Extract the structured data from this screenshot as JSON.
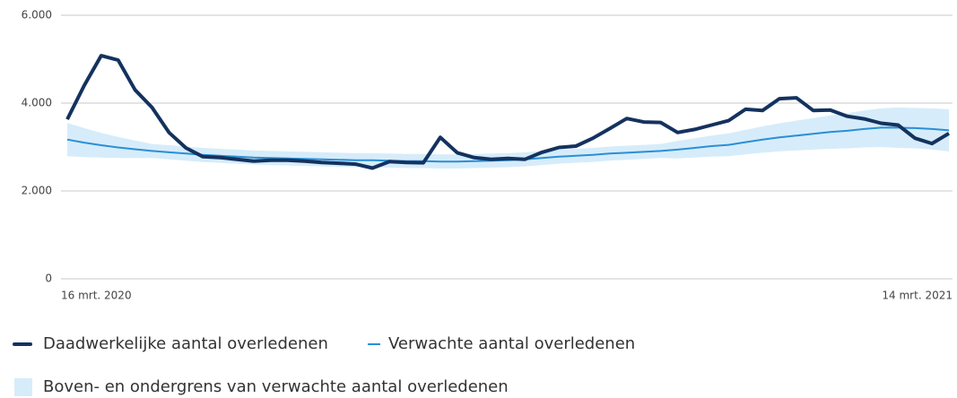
{
  "chart_data": {
    "type": "line",
    "categories": [
      "16 mrt. 2020",
      null,
      null,
      null,
      null,
      null,
      null,
      null,
      null,
      null,
      null,
      null,
      null,
      null,
      null,
      null,
      null,
      null,
      null,
      null,
      null,
      null,
      null,
      null,
      null,
      null,
      null,
      null,
      null,
      null,
      null,
      null,
      null,
      null,
      null,
      null,
      null,
      null,
      null,
      null,
      null,
      null,
      null,
      null,
      null,
      null,
      null,
      null,
      null,
      null,
      null,
      null,
      "14 mrt. 2021"
    ],
    "series": [
      {
        "name": "Daadwerkelijke aantal overledenen",
        "color": "#14325f",
        "values": [
          3630,
          4400,
          5080,
          4980,
          4300,
          3900,
          3330,
          2980,
          2780,
          2760,
          2720,
          2680,
          2700,
          2700,
          2680,
          2650,
          2630,
          2610,
          2520,
          2670,
          2650,
          2640,
          3220,
          2870,
          2760,
          2720,
          2740,
          2720,
          2880,
          2990,
          3020,
          3200,
          3420,
          3650,
          3570,
          3560,
          3330,
          3400,
          3500,
          3600,
          3860,
          3830,
          4100,
          4120,
          3830,
          3840,
          3700,
          3640,
          3540,
          3500,
          3200,
          3080,
          3310
        ]
      },
      {
        "name": "Verwachte aantal overledenen",
        "color": "#2a8fd6",
        "values": [
          3170,
          3100,
          3040,
          2990,
          2950,
          2910,
          2880,
          2850,
          2820,
          2800,
          2780,
          2760,
          2750,
          2740,
          2730,
          2720,
          2710,
          2700,
          2700,
          2690,
          2680,
          2680,
          2670,
          2670,
          2680,
          2690,
          2700,
          2720,
          2750,
          2780,
          2800,
          2820,
          2850,
          2870,
          2890,
          2910,
          2940,
          2980,
          3020,
          3050,
          3110,
          3170,
          3220,
          3260,
          3300,
          3340,
          3370,
          3410,
          3440,
          3440,
          3430,
          3410,
          3380
        ]
      }
    ],
    "band": {
      "name": "Boven- en ondergrens van verwachte aantal overledenen",
      "color": "#d6ecfa",
      "upper": [
        3550,
        3430,
        3320,
        3230,
        3150,
        3070,
        3040,
        3010,
        2980,
        2960,
        2940,
        2920,
        2910,
        2900,
        2890,
        2880,
        2870,
        2860,
        2860,
        2850,
        2840,
        2840,
        2830,
        2830,
        2840,
        2850,
        2860,
        2880,
        2910,
        2940,
        2960,
        2980,
        3010,
        3030,
        3050,
        3070,
        3140,
        3200,
        3260,
        3310,
        3390,
        3470,
        3540,
        3600,
        3660,
        3720,
        3770,
        3830,
        3880,
        3900,
        3890,
        3880,
        3860
      ],
      "lower": [
        2790,
        2770,
        2760,
        2750,
        2750,
        2750,
        2720,
        2690,
        2660,
        2640,
        2620,
        2600,
        2590,
        2580,
        2570,
        2560,
        2550,
        2540,
        2540,
        2530,
        2520,
        2520,
        2510,
        2510,
        2520,
        2530,
        2540,
        2560,
        2590,
        2620,
        2640,
        2660,
        2690,
        2710,
        2730,
        2750,
        2740,
        2760,
        2780,
        2790,
        2830,
        2870,
        2900,
        2920,
        2940,
        2960,
        2970,
        2990,
        3000,
        2980,
        2970,
        2940,
        2900
      ]
    },
    "ylim": [
      0,
      6000
    ],
    "yticks": [
      0,
      {
        "value": 2000,
        "label": "2.000"
      },
      {
        "value": 4000,
        "label": "4.000"
      },
      {
        "value": 6000,
        "label": "6.000"
      }
    ],
    "grid": true
  }
}
